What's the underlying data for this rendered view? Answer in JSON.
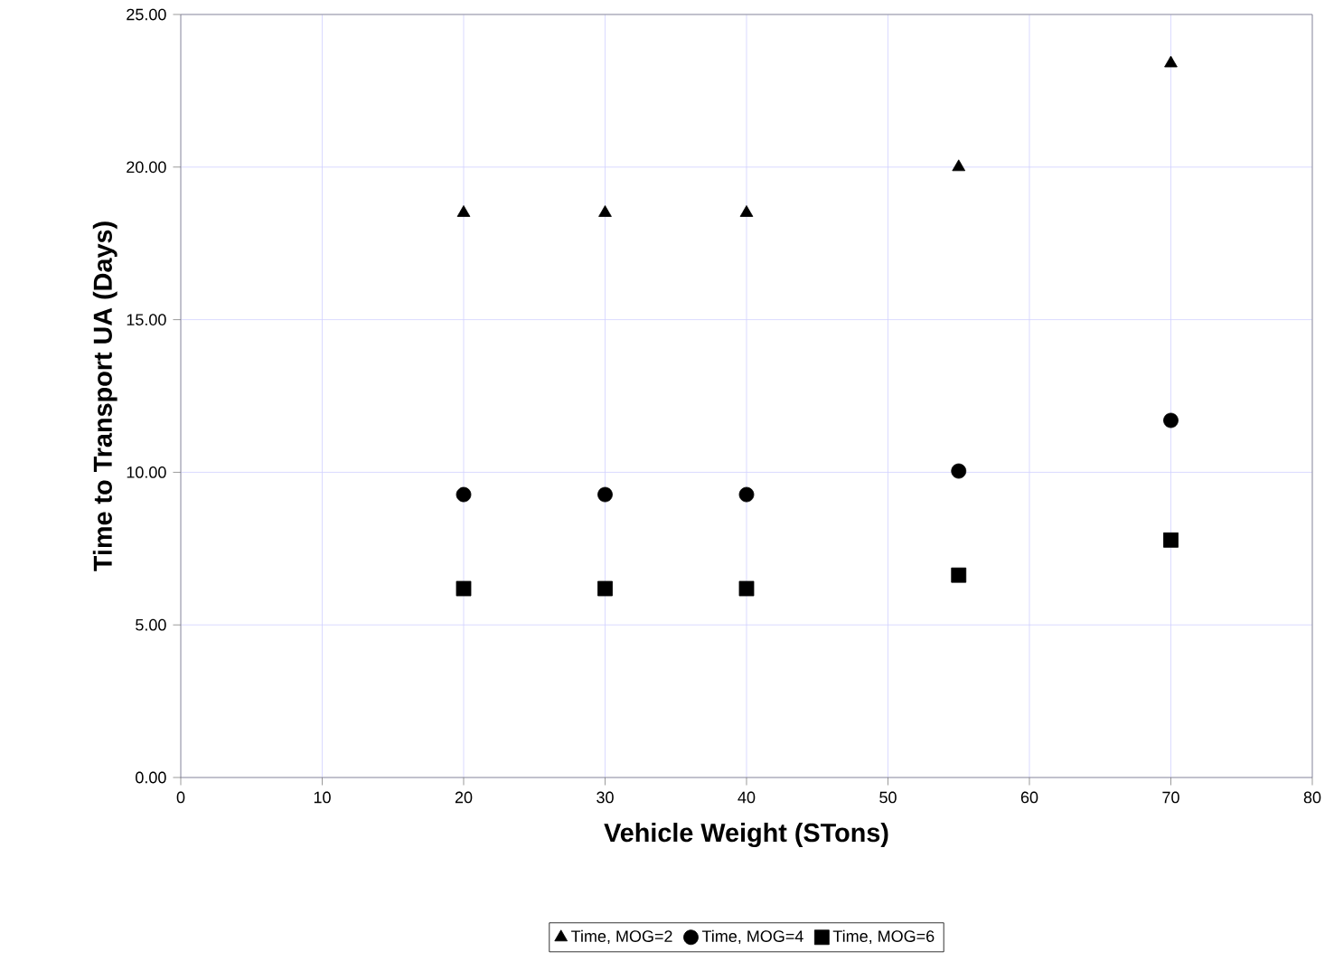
{
  "chart_data": {
    "type": "scatter",
    "xlabel": "Vehicle Weight (STons)",
    "ylabel": "Time to Transport UA (Days)",
    "xlim": [
      0,
      80
    ],
    "xticks": [
      0,
      10,
      20,
      30,
      40,
      50,
      60,
      70,
      80
    ],
    "ylim": [
      0,
      25
    ],
    "yticks": [
      {
        "value": 0,
        "label": "0.00"
      },
      {
        "value": 5,
        "label": "5.00"
      },
      {
        "value": 10,
        "label": "10.00"
      },
      {
        "value": 15,
        "label": "15.00"
      },
      {
        "value": 20,
        "label": "20.00"
      },
      {
        "value": 25,
        "label": "25.00"
      }
    ],
    "x": [
      20,
      30,
      40,
      55,
      70
    ],
    "grid": true,
    "legend": "bottom",
    "series": [
      {
        "name": "Time, MOG=2",
        "color": "#000000",
        "marker": "triangle",
        "values": [
          18.5,
          18.5,
          18.5,
          20.0,
          23.4
        ]
      },
      {
        "name": "Time, MOG=4",
        "color": "#000000",
        "marker": "circle",
        "values": [
          9.27,
          9.27,
          9.27,
          10.04,
          11.7
        ]
      },
      {
        "name": "Time, MOG=6",
        "color": "#000000",
        "marker": "square",
        "values": [
          6.19,
          6.19,
          6.19,
          6.63,
          7.78
        ]
      }
    ]
  }
}
